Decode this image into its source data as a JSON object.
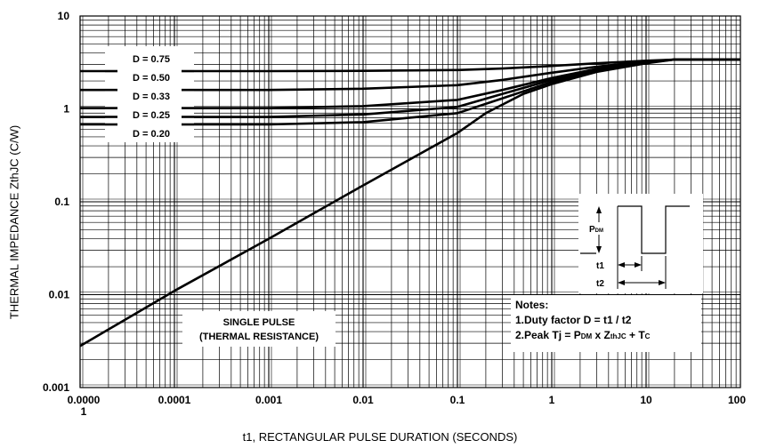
{
  "chart_data": {
    "type": "line",
    "xlabel": "t1, RECTANGULAR PULSE DURATION (SECONDS)",
    "ylabel": "THERMAL IMPEDANCE ZthJC (C/W)",
    "x_scale": "log",
    "y_scale": "log",
    "xlim": [
      1e-05,
      100
    ],
    "ylim": [
      0.001,
      10
    ],
    "grid": true,
    "x_ticks": [
      {
        "value": 1e-05,
        "label": "0.0000\n1"
      },
      {
        "value": 0.0001,
        "label": "0.0001"
      },
      {
        "value": 0.001,
        "label": "0.001"
      },
      {
        "value": 0.01,
        "label": "0.01"
      },
      {
        "value": 0.1,
        "label": "0.1"
      },
      {
        "value": 1,
        "label": "1"
      },
      {
        "value": 10,
        "label": "10"
      },
      {
        "value": 100,
        "label": "100"
      }
    ],
    "y_ticks": [
      {
        "value": 0.001,
        "label": "0.001"
      },
      {
        "value": 0.01,
        "label": "0.01"
      },
      {
        "value": 0.1,
        "label": "0.1"
      },
      {
        "value": 1,
        "label": "1"
      },
      {
        "value": 10,
        "label": "10"
      }
    ],
    "series": [
      {
        "name": "D = 0.75",
        "x": [
          1e-05,
          0.001,
          0.01,
          0.1,
          0.3,
          1,
          3,
          10,
          20,
          100
        ],
        "y": [
          2.55,
          2.55,
          2.57,
          2.62,
          2.72,
          2.9,
          3.1,
          3.3,
          3.4,
          3.4
        ]
      },
      {
        "name": "D = 0.50",
        "x": [
          1e-05,
          0.001,
          0.01,
          0.1,
          0.3,
          1,
          3,
          10,
          20,
          100
        ],
        "y": [
          1.6,
          1.6,
          1.65,
          1.8,
          2.05,
          2.45,
          2.85,
          3.25,
          3.4,
          3.4
        ]
      },
      {
        "name": "D = 0.33",
        "x": [
          1e-05,
          0.001,
          0.01,
          0.1,
          0.3,
          1,
          3,
          10,
          20,
          100
        ],
        "y": [
          1.02,
          1.02,
          1.07,
          1.25,
          1.6,
          2.15,
          2.7,
          3.2,
          3.4,
          3.4
        ]
      },
      {
        "name": "D = 0.25",
        "x": [
          1e-05,
          0.001,
          0.01,
          0.1,
          0.3,
          1,
          3,
          10,
          20,
          100
        ],
        "y": [
          0.82,
          0.82,
          0.87,
          1.05,
          1.45,
          2.05,
          2.65,
          3.2,
          3.4,
          3.4
        ]
      },
      {
        "name": "D = 0.20",
        "x": [
          1e-05,
          0.001,
          0.01,
          0.1,
          0.3,
          1,
          3,
          10,
          20,
          100
        ],
        "y": [
          0.68,
          0.68,
          0.72,
          0.9,
          1.3,
          1.95,
          2.6,
          3.15,
          3.4,
          3.4
        ]
      },
      {
        "name": "SINGLE PULSE (THERMAL RESISTANCE)",
        "x": [
          1e-05,
          0.0001,
          0.001,
          0.01,
          0.1,
          0.2,
          0.5,
          1,
          3,
          10,
          20,
          100
        ],
        "y": [
          0.0028,
          0.011,
          0.04,
          0.15,
          0.55,
          0.9,
          1.45,
          1.85,
          2.5,
          3.1,
          3.4,
          3.4
        ]
      }
    ],
    "legend_labels": [
      "D = 0.75",
      "D = 0.50",
      "D = 0.33",
      "D = 0.25",
      "D = 0.20"
    ],
    "annotations": {
      "single_pulse": [
        "SINGLE PULSE",
        "(THERMAL RESISTANCE)"
      ],
      "notes_title": "Notes:",
      "note1": "1.Duty factor  D = t1 / t2",
      "note2_prefix": "2.Peak  Tj = ",
      "note2_pdm_main": "P",
      "note2_pdm_sub": "DM",
      "note2_mid": " x Z",
      "note2_sub": "thJC",
      "note2_suffix": " + T",
      "note2_tc_sub": "C",
      "inset_pdm_main": "P",
      "inset_pdm_sub": "DM",
      "inset_t1": "t1",
      "inset_t2": "t2"
    },
    "colors": {
      "line": "#000000",
      "grid": "#000000",
      "background": "#ffffff"
    }
  }
}
